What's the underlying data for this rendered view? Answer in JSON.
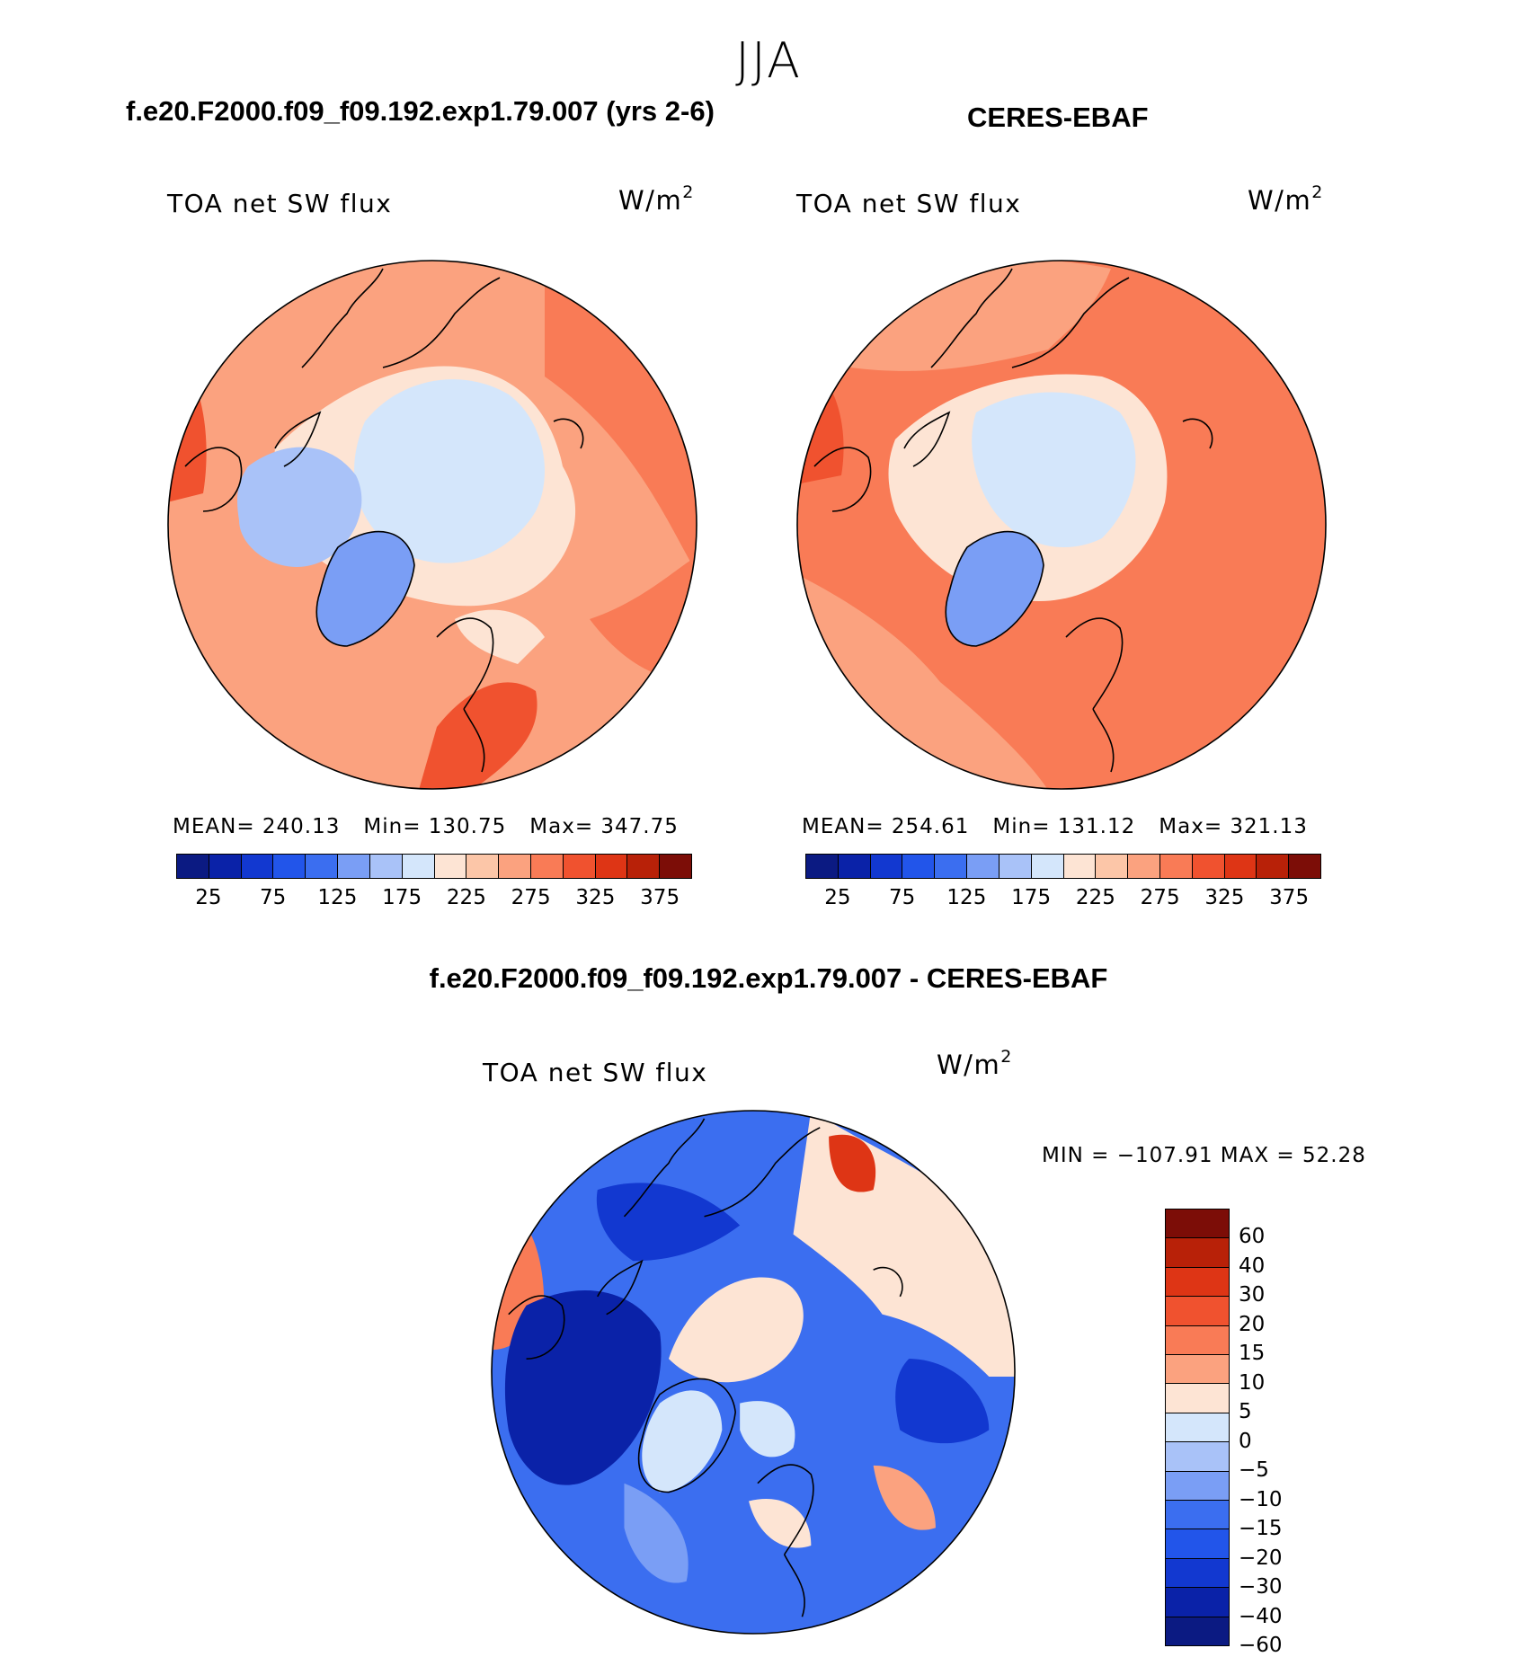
{
  "season": "JJA",
  "panels": [
    {
      "case_title": "f.e20.F2000.f09_f09.192.exp1.79.007 (yrs 2-6)",
      "variable": "TOA net SW flux",
      "units": "W/m",
      "units_exp": "2",
      "stats": {
        "mean": "MEAN= 240.13",
        "min": "Min= 130.75",
        "max": "Max= 347.75"
      },
      "colorbar_labels": [
        "25",
        "75",
        "125",
        "175",
        "225",
        "275",
        "325",
        "375"
      ]
    },
    {
      "case_title": "CERES-EBAF",
      "variable": "TOA net SW flux",
      "units": "W/m",
      "units_exp": "2",
      "stats": {
        "mean": "MEAN= 254.61",
        "min": "Min= 131.12",
        "max": "Max= 321.13"
      },
      "colorbar_labels": [
        "25",
        "75",
        "125",
        "175",
        "225",
        "275",
        "325",
        "375"
      ]
    }
  ],
  "diff": {
    "title": "f.e20.F2000.f09_f09.192.exp1.79.007 - CERES-EBAF",
    "variable": "TOA net SW flux",
    "units": "W/m",
    "units_exp": "2",
    "minmax": "MIN = −107.91 MAX =   52.28",
    "colorbar_labels": [
      "60",
      "40",
      "30",
      "20",
      "15",
      "10",
      "5",
      "0",
      "−5",
      "−10",
      "−15",
      "−20",
      "−30",
      "−40",
      "−60"
    ]
  },
  "colors": {
    "abs_scale": [
      "#0b1a82",
      "#0a22a8",
      "#1238d0",
      "#2255ea",
      "#3b6ef0",
      "#7a9ef5",
      "#a9c2f8",
      "#d4e6fb",
      "#fde4d4",
      "#fcc6a8",
      "#fba27f",
      "#f97b56",
      "#f0522f",
      "#de3515",
      "#b82108",
      "#7c0d07"
    ],
    "diff_scale": [
      "#7c0d07",
      "#b82108",
      "#de3515",
      "#f0522f",
      "#f97b56",
      "#fba27f",
      "#fde4d4",
      "#d4e6fb",
      "#a9c2f8",
      "#7a9ef5",
      "#3b6ef0",
      "#2255ea",
      "#1238d0",
      "#0a22a8",
      "#0b1a82"
    ]
  }
}
